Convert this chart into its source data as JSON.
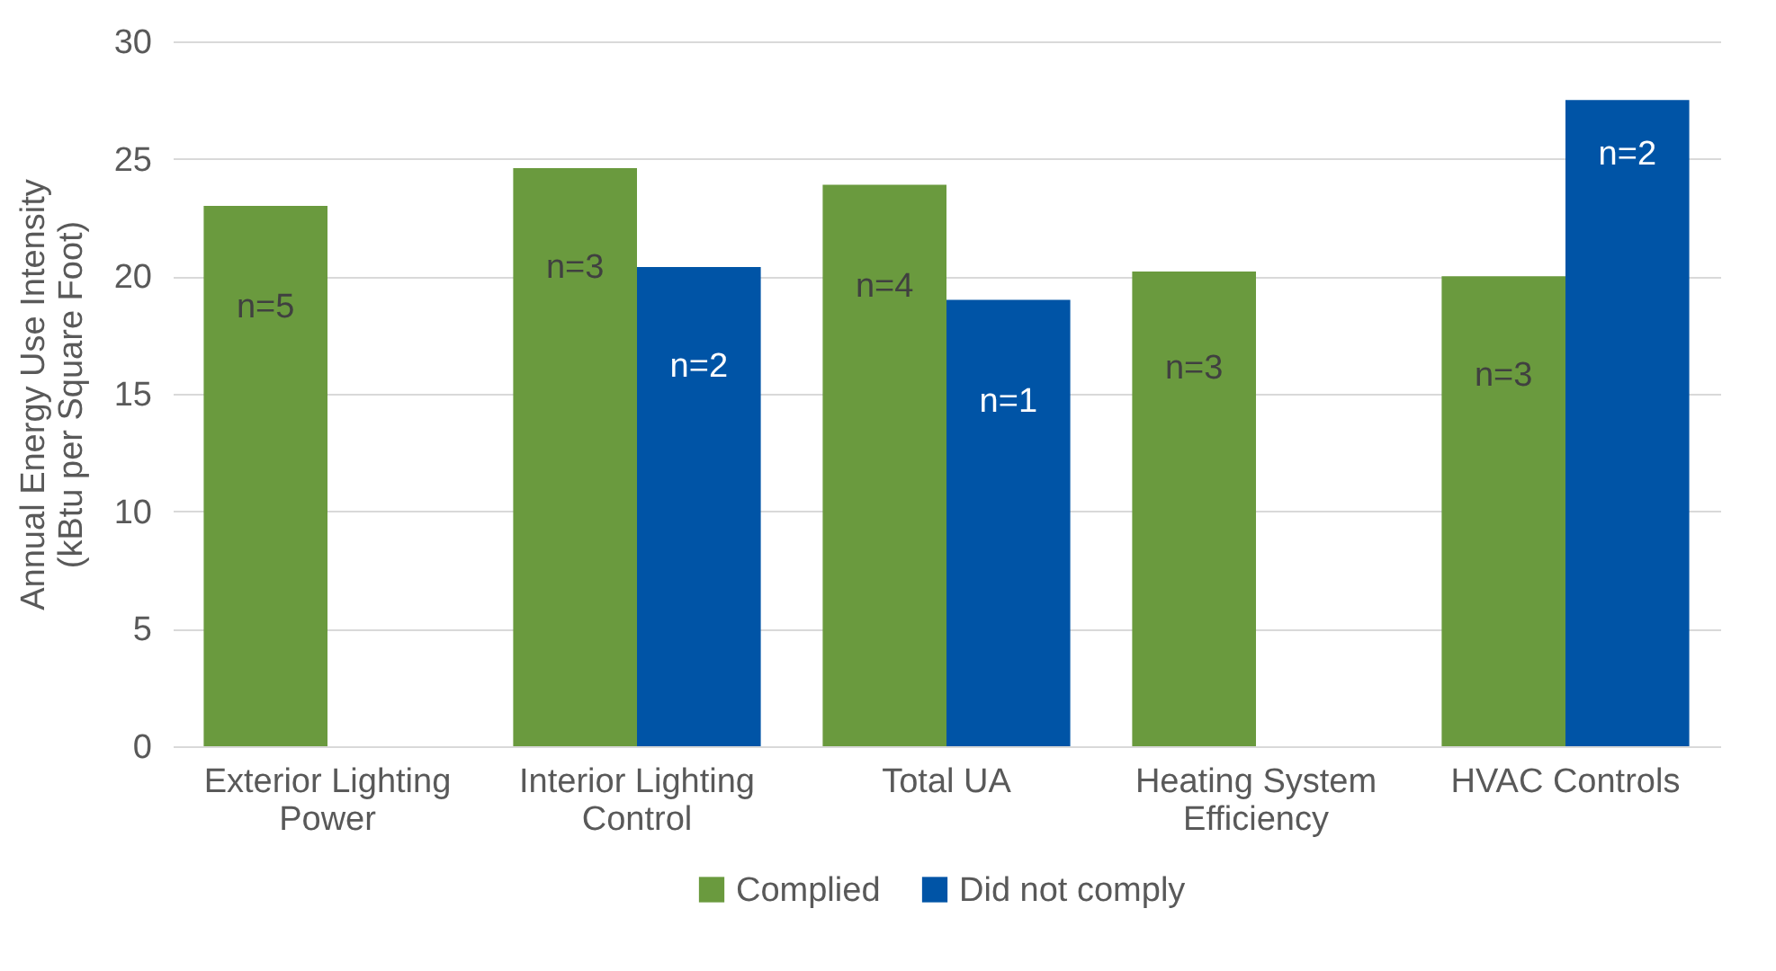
{
  "chart_data": {
    "type": "bar",
    "ylabel": "Annual Energy Use Intensity\n(kBtu per Square Foot)",
    "categories": [
      "Exterior Lighting Power",
      "Interior Lighting Control",
      "Total UA",
      "Heating System Efficiency",
      "HVAC Controls"
    ],
    "series": [
      {
        "name": "Complied",
        "color": "#6a9a3e",
        "values": [
          23.0,
          24.6,
          23.9,
          20.2,
          20.0
        ]
      },
      {
        "name": "Did not comply",
        "color": "#0054a6",
        "values": [
          null,
          20.4,
          19.0,
          null,
          27.5
        ]
      }
    ],
    "annotations": [
      {
        "text": "n=5",
        "x": "Exterior Lighting Power",
        "y": 18.7
      },
      {
        "text": "n=3",
        "x": "Interior Lighting Control",
        "y": 20.4
      },
      {
        "text": "n=2",
        "x": "Interior Lighting Control",
        "y": 16.2
      },
      {
        "text": "n=4",
        "x": "Total UA",
        "y": 19.6
      },
      {
        "text": "n=1",
        "x": "Total UA",
        "y": 14.7
      },
      {
        "text": "n=3",
        "x": "Heating System Efficiency",
        "y": 16.1
      },
      {
        "text": "n=3",
        "x": "HVAC Controls",
        "y": 15.8
      },
      {
        "text": "n=2",
        "x": "HVAC Controls",
        "y": 25.2
      }
    ],
    "ylim": [
      0,
      30
    ],
    "yticks": [
      0,
      5,
      10,
      15,
      20,
      25,
      30
    ],
    "grid": "y",
    "legend": "bottom"
  }
}
